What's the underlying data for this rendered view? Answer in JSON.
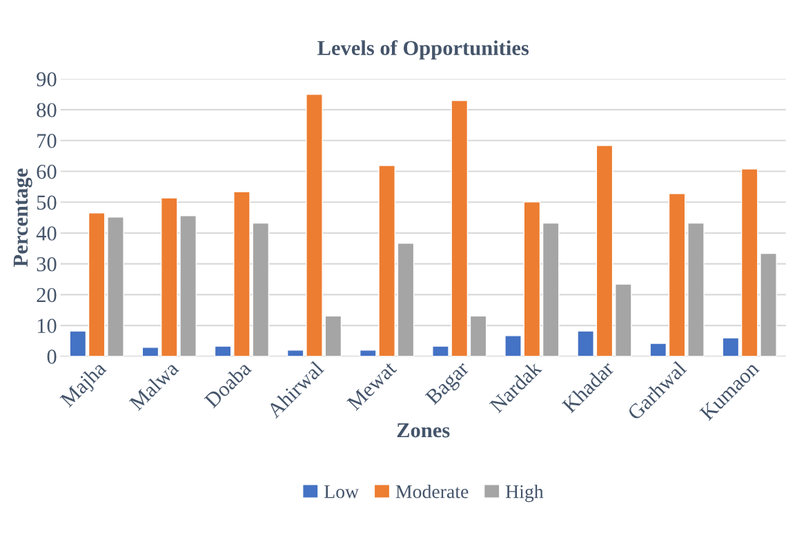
{
  "chart_data": {
    "type": "bar",
    "title": "Levels of Opportunities",
    "xlabel": "Zones",
    "ylabel": "Percentage",
    "categories": [
      "Majha",
      "Malwa",
      "Doaba",
      "Ahirwal",
      "Mewat",
      "Bagar",
      "Nardak",
      "Khadar",
      "Garhwal",
      "Kumaon"
    ],
    "series": [
      {
        "name": "Low",
        "color": "#4472c4",
        "values": [
          8.2,
          2.9,
          3.3,
          2,
          2,
          3.3,
          6.7,
          8.2,
          4.2,
          6
        ]
      },
      {
        "name": "Moderate",
        "color": "#ed7d31",
        "values": [
          46.5,
          51.4,
          53.4,
          85,
          61.9,
          83,
          50.1,
          68.4,
          52.8,
          60.8
        ]
      },
      {
        "name": "High",
        "color": "#a5a5a5",
        "values": [
          45.2,
          45.6,
          43.2,
          13.1,
          36.7,
          13.1,
          43.2,
          23.4,
          43.2,
          33.4
        ]
      }
    ],
    "ylim": [
      0,
      90
    ],
    "yticks": [
      0,
      10,
      20,
      30,
      40,
      50,
      60,
      70,
      80,
      90
    ],
    "grid": "y",
    "legend": "bottom"
  }
}
